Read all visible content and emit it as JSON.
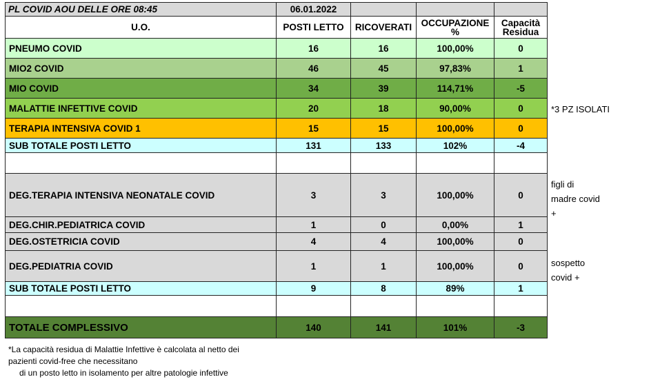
{
  "header": {
    "title": "PL COVID AOU DELLE ORE  08:45",
    "date": "06.01.2022"
  },
  "columns": {
    "unit": "U.O.",
    "beds": "POSTI LETTO",
    "admitted": "RICOVERATI",
    "occupancy_line1": "OCCUPAZIONE",
    "occupancy_line2": "%",
    "capacity_line1": "Capacità",
    "capacity_line2": "Residua"
  },
  "rows": [
    {
      "name": "PNEUMO COVID",
      "beds": "16",
      "admitted": "16",
      "occupancy": "100,00%",
      "capacity": "0",
      "color": "#ccffcc"
    },
    {
      "name": "MIO2 COVID",
      "beds": "46",
      "admitted": "45",
      "occupancy": "97,83%",
      "capacity": "1",
      "color": "#a9d18e"
    },
    {
      "name": "MIO COVID",
      "beds": "34",
      "admitted": "39",
      "occupancy": "114,71%",
      "capacity": "-5",
      "color": "#70ad47"
    },
    {
      "name": "MALATTIE INFETTIVE COVID",
      "beds": "20",
      "admitted": "18",
      "occupancy": "90,00%",
      "capacity": "0",
      "color": "#92d050"
    },
    {
      "name": "TERAPIA INTENSIVA COVID 1",
      "beds": "15",
      "admitted": "15",
      "occupancy": "100,00%",
      "capacity": "0",
      "color": "#ffc000"
    },
    {
      "name": "SUB TOTALE POSTI LETTO",
      "beds": "131",
      "admitted": "133",
      "occupancy": "102%",
      "capacity": "-4",
      "color": "#ccffff"
    },
    {
      "name": "DEG.TERAPIA INTENSIVA NEONATALE COVID",
      "beds": "3",
      "admitted": "3",
      "occupancy": "100,00%",
      "capacity": "0",
      "color": "#d9d9d9"
    },
    {
      "name": "DEG.CHIR.PEDIATRICA COVID",
      "beds": "1",
      "admitted": "0",
      "occupancy": "0,00%",
      "capacity": "1",
      "color": "#d9d9d9"
    },
    {
      "name": "DEG.OSTETRICIA COVID",
      "beds": "4",
      "admitted": "4",
      "occupancy": "100,00%",
      "capacity": "0",
      "color": "#d9d9d9"
    },
    {
      "name": "DEG.PEDIATRIA COVID",
      "beds": "1",
      "admitted": "1",
      "occupancy": "100,00%",
      "capacity": "0",
      "color": "#d9d9d9"
    },
    {
      "name": "SUB TOTALE POSTI LETTO",
      "beds": "9",
      "admitted": "8",
      "occupancy": "89%",
      "capacity": "1",
      "color": "#ccffff"
    },
    {
      "name": "TOTALE  COMPLESSIVO",
      "beds": "140",
      "admitted": "141",
      "occupancy": "101%",
      "capacity": "-3",
      "color": "#548235"
    }
  ],
  "side_notes": {
    "isolated": "*3 PZ  ISOLATI",
    "neonatal_line1": "figli di",
    "neonatal_line2": "madre covid",
    "neonatal_line3": "+",
    "pediatric_line1": "sospetto",
    "pediatric_line2": "covid +"
  },
  "footnote": {
    "line1": "*La capacità residua di Malattie Infettive è calcolata al netto dei",
    "line2": "pazienti covid-free che necessitano",
    "line3": "di un posto letto in isolamento per altre patologie infettive"
  }
}
